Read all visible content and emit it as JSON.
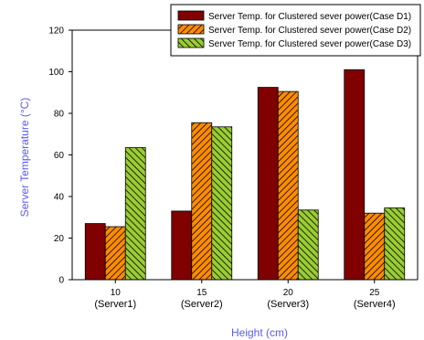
{
  "colors": {
    "axis_title": "#5b5bf0",
    "series": [
      "#800000",
      "#ff8c00",
      "#9acd32"
    ],
    "hatch": "#000000"
  },
  "chart_data": {
    "type": "bar",
    "categories": [
      {
        "line1": "10",
        "line2": "(Server1)"
      },
      {
        "line1": "15",
        "line2": "(Server2)"
      },
      {
        "line1": "20",
        "line2": "(Server3)"
      },
      {
        "line1": "25",
        "line2": "(Server4)"
      }
    ],
    "series": [
      {
        "name": "Server Temp. for Clustered sever power(Case D1)",
        "values": [
          27,
          33,
          92.5,
          101
        ],
        "fill": "solid"
      },
      {
        "name": "Server Temp. for Clustered sever power(Case D2)",
        "values": [
          25.5,
          75.5,
          90.5,
          32
        ],
        "fill": "hatch-right"
      },
      {
        "name": "Server Temp. for Clustered sever power(Case D3)",
        "values": [
          63.5,
          73.5,
          33.5,
          34.5
        ],
        "fill": "hatch-left"
      }
    ],
    "xlabel": "Height (cm)",
    "ylabel": "Server Temperature (°C)",
    "ylim": [
      0,
      120
    ],
    "yticks": [
      0,
      20,
      40,
      60,
      80,
      100,
      120
    ],
    "legend_position": "top-right",
    "grid": false
  }
}
